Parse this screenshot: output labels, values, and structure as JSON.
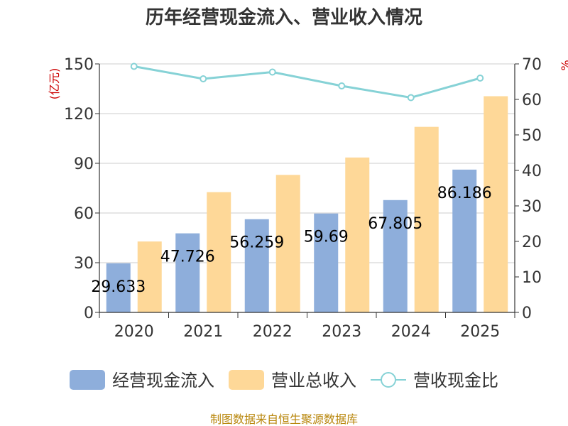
{
  "chart_data": {
    "type": "bar",
    "title": "历年经营现金流入、营业收入情况",
    "ylabel_left": "(亿元)",
    "ylabel_right": "%",
    "ylim_left": [
      0,
      150
    ],
    "ylim_right": [
      0,
      70
    ],
    "left_ticks": [
      "0",
      "30",
      "60",
      "90",
      "120",
      "150"
    ],
    "right_ticks": [
      "0",
      "10",
      "20",
      "30",
      "40",
      "50",
      "60",
      "70"
    ],
    "categories": [
      "2020",
      "2021",
      "2022",
      "2023",
      "2024",
      "2025"
    ],
    "series": [
      {
        "name": "经营现金流入",
        "kind": "bar",
        "color": "#8eaedb",
        "values": [
          29.633,
          47.726,
          56.259,
          59.69,
          67.805,
          86.186
        ],
        "labels": [
          "29.633",
          "47.726",
          "56.259",
          "59.69",
          "67.805",
          "86.186"
        ]
      },
      {
        "name": "营业总收入",
        "kind": "bar",
        "color": "#fed898",
        "values": [
          42.8,
          72.6,
          83.0,
          93.5,
          112.0,
          130.5
        ]
      },
      {
        "name": "营收现金比",
        "kind": "line",
        "color": "#86d2d6",
        "axis": "right",
        "values": [
          69.3,
          65.8,
          67.7,
          63.8,
          60.5,
          66.0
        ]
      }
    ],
    "grid": true
  },
  "source": "制图数据来自恒生聚源数据库"
}
